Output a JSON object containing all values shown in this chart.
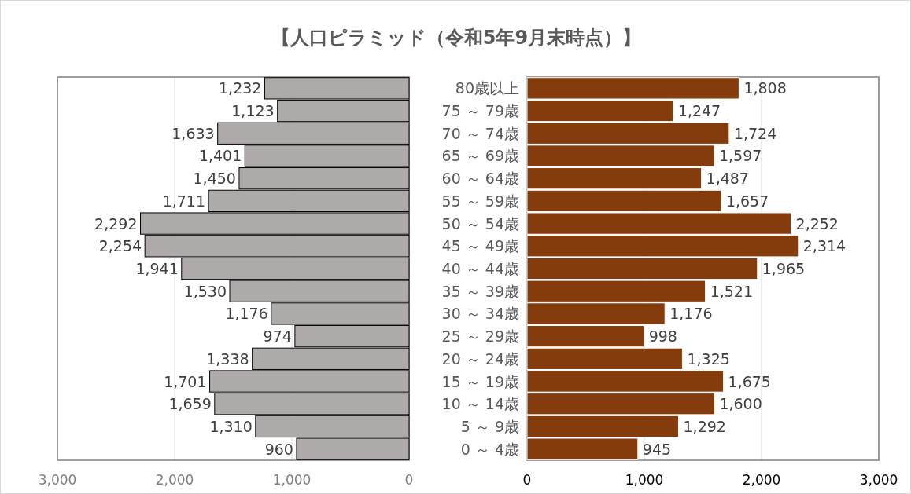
{
  "chart_data": [
    {
      "type": "bar",
      "orientation": "horizontal",
      "title": "【人口ピラミッド（令和5年9月末時点）】",
      "categories": [
        "80歳以上",
        "75 ～ 79歳",
        "70 ～ 74歳",
        "65 ～ 69歳",
        "60 ～ 64歳",
        "55 ～ 59歳",
        "50 ～ 54歳",
        "45 ～ 49歳",
        "40 ～ 44歳",
        "35 ～ 39歳",
        "30 ～ 34歳",
        "25 ～ 29歳",
        "20 ～ 24歳",
        "15 ～ 19歳",
        "10 ～ 14歳",
        "5 ～ 9歳",
        "0 ～ 4歳"
      ],
      "values": [
        1232,
        1123,
        1633,
        1401,
        1450,
        1711,
        2292,
        2254,
        1941,
        1530,
        1176,
        974,
        1338,
        1701,
        1659,
        1310,
        960
      ],
      "value_labels": [
        "1,232",
        "1,123",
        "1,633",
        "1,401",
        "1,450",
        "1,711",
        "2,292",
        "2,254",
        "1,941",
        "1,530",
        "1,176",
        "974",
        "1,338",
        "1,701",
        "1,659",
        "1,310",
        "960"
      ],
      "color": "#aeaaaa",
      "xlim": [
        3000,
        0
      ],
      "xticks": [
        {
          "value": 3000,
          "label": "3,000"
        },
        {
          "value": 2000,
          "label": "2,000"
        },
        {
          "value": 1000,
          "label": "1,000"
        },
        0
      ],
      "grid": "x"
    },
    {
      "type": "bar",
      "orientation": "horizontal",
      "tick_labels": "x",
      "categories": [
        null,
        null,
        null,
        null,
        null,
        null,
        null,
        null,
        null,
        null,
        null,
        null,
        null,
        null,
        null,
        null,
        null
      ],
      "values": [
        1808,
        1247,
        1724,
        1597,
        1487,
        1657,
        2252,
        2314,
        1965,
        1521,
        1176,
        998,
        1325,
        1675,
        1600,
        1292,
        945
      ],
      "value_labels": [
        "1,808",
        "1,247",
        "1,724",
        "1,597",
        "1,487",
        "1,657",
        "2,252",
        "2,314",
        "1,965",
        "1,521",
        "1,176",
        "998",
        "1,325",
        "1,675",
        "1,600",
        "1,292",
        "945"
      ],
      "color": "#843c0c",
      "xlim": [
        0,
        3000
      ],
      "xticks": [
        0,
        {
          "value": 1000,
          "label": "1,000"
        },
        {
          "value": 2000,
          "label": "2,000"
        },
        {
          "value": 3000,
          "label": "3,000"
        }
      ],
      "grid": "x"
    }
  ]
}
